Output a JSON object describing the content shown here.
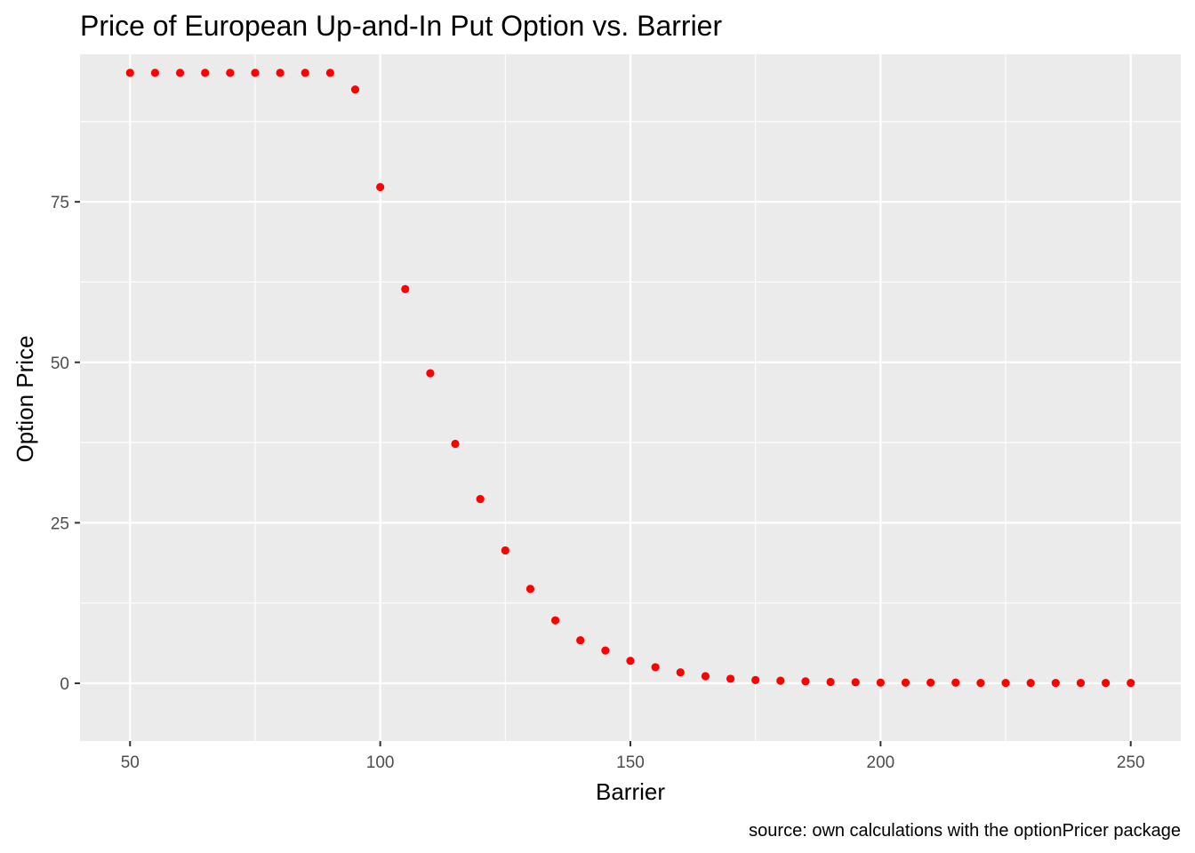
{
  "chart_data": {
    "type": "scatter",
    "title": "Price of European Up-and-In Put Option vs. Barrier",
    "xlabel": "Barrier",
    "ylabel": "Option Price",
    "caption": "source: own calculations with the optionPricer package",
    "xlim": [
      40,
      260
    ],
    "ylim": [
      -9,
      98
    ],
    "x_ticks": [
      50,
      100,
      150,
      200,
      250
    ],
    "y_ticks": [
      0,
      25,
      50,
      75
    ],
    "x_tick_labels": [
      "50",
      "100",
      "150",
      "200",
      "250"
    ],
    "y_tick_labels": [
      "0",
      "25",
      "50",
      "75"
    ],
    "grid": true,
    "point_color": "#ff0000",
    "panel_color": "#ebebeb",
    "x": [
      50,
      55,
      60,
      65,
      70,
      75,
      80,
      85,
      90,
      95,
      100,
      105,
      110,
      115,
      120,
      125,
      130,
      135,
      140,
      145,
      150,
      155,
      160,
      165,
      170,
      175,
      180,
      185,
      190,
      195,
      200,
      205,
      210,
      215,
      220,
      225,
      230,
      235,
      240,
      245,
      250
    ],
    "y": [
      95.1,
      95.1,
      95.1,
      95.1,
      95.1,
      95.1,
      95.1,
      95.1,
      95.1,
      92.5,
      77.3,
      61.4,
      48.3,
      37.3,
      28.7,
      20.7,
      14.7,
      9.8,
      6.7,
      5.1,
      3.5,
      2.5,
      1.7,
      1.1,
      0.7,
      0.5,
      0.4,
      0.3,
      0.2,
      0.15,
      0.1,
      0.1,
      0.1,
      0.1,
      0.05,
      0.05,
      0.05,
      0.05,
      0.05,
      0.05,
      0.05
    ]
  }
}
